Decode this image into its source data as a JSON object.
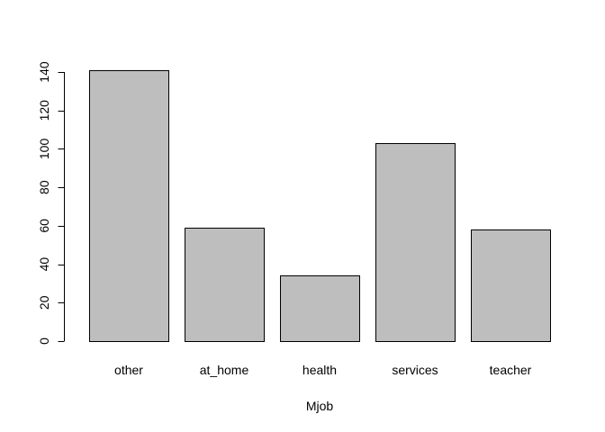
{
  "chart_data": {
    "type": "bar",
    "categories": [
      "other",
      "at_home",
      "health",
      "services",
      "teacher"
    ],
    "values": [
      141,
      59,
      34,
      103,
      58
    ],
    "xlabel": "Mjob",
    "ylabel": "",
    "ylim": [
      0,
      140
    ],
    "yticks": [
      0,
      20,
      40,
      60,
      80,
      100,
      120,
      140
    ],
    "grid": false,
    "bar_color": "#bebebe",
    "bar_border_color": "#000000"
  }
}
